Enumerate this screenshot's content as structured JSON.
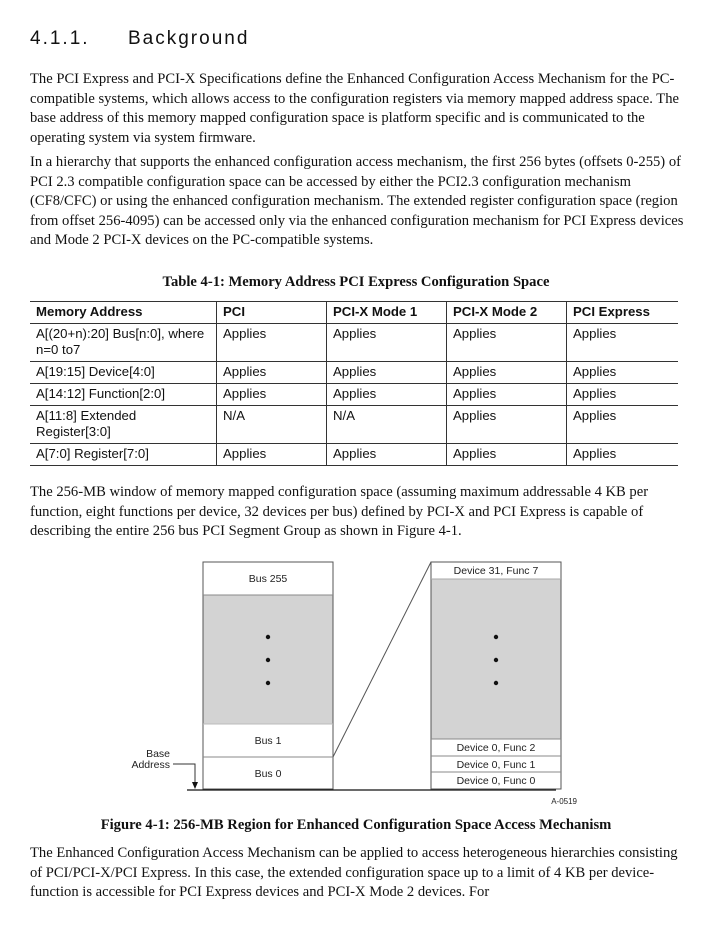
{
  "section": {
    "number": "4.1.1.",
    "title": "Background"
  },
  "paragraphs": [
    "The PCI Express and PCI-X Specifications define the Enhanced Configuration Access Mechanism for the PC-compatible systems, which allows access to the configuration registers via memory mapped address space.  The base address of this memory mapped configuration space is platform specific and is communicated to the operating system via system firmware.",
    "In a hierarchy that supports the enhanced configuration access mechanism, the first 256 bytes (offsets 0-255) of PCI 2.3 compatible configuration space can be accessed by either the PCI2.3 configuration mechanism (CF8/CFC) or using the enhanced configuration mechanism.  The extended register configuration space (region from offset 256-4095) can be accessed only via the enhanced configuration mechanism for PCI Express devices and Mode 2 PCI-X devices on the PC-compatible systems.",
    "The 256-MB window of memory mapped configuration space (assuming maximum addressable 4 KB per function, eight functions per device, 32 devices per bus) defined by PCI-X and PCI Express is capable of describing the entire 256 bus PCI Segment Group as shown in Figure 4-1.",
    "The Enhanced Configuration Access Mechanism can be applied to access heterogeneous hierarchies consisting of PCI/PCI-X/PCI Express. In this case, the extended configuration space up to a limit of 4 KB per device-function is accessible for PCI Express devices and PCI-X Mode 2 devices.  For"
  ],
  "table": {
    "caption": "Table 4-1:  Memory Address PCI Express Configuration Space",
    "headers": [
      "Memory Address",
      "PCI",
      "PCI-X Mode 1",
      "PCI-X Mode 2",
      "PCI Express"
    ],
    "rows": [
      [
        "A[(20+n):20] Bus[n:0], where n=0 to7",
        "Applies",
        "Applies",
        "Applies",
        "Applies"
      ],
      [
        "A[19:15] Device[4:0]",
        "Applies",
        "Applies",
        "Applies",
        "Applies"
      ],
      [
        "A[14:12] Function[2:0]",
        "Applies",
        "Applies",
        "Applies",
        "Applies"
      ],
      [
        "A[11:8] Extended Register[3:0]",
        "N/A",
        "N/A",
        "Applies",
        "Applies"
      ],
      [
        "A[7:0] Register[7:0]",
        "Applies",
        "Applies",
        "Applies",
        "Applies"
      ]
    ]
  },
  "figure": {
    "bus_labels": {
      "top": "Bus 255",
      "bus1": "Bus 1",
      "bus0": "Bus 0"
    },
    "base_address": [
      "Base",
      "Address"
    ],
    "device_labels": {
      "top": "Device 31, Func 7",
      "f2": "Device 0, Func 2",
      "f1": "Device 0, Func 1",
      "f0": "Device 0, Func 0"
    },
    "figure_id": "A-0519",
    "caption": "Figure 4-1:  256-MB Region for Enhanced Configuration Space Access Mechanism",
    "fill_color": "#d3d3d3"
  }
}
